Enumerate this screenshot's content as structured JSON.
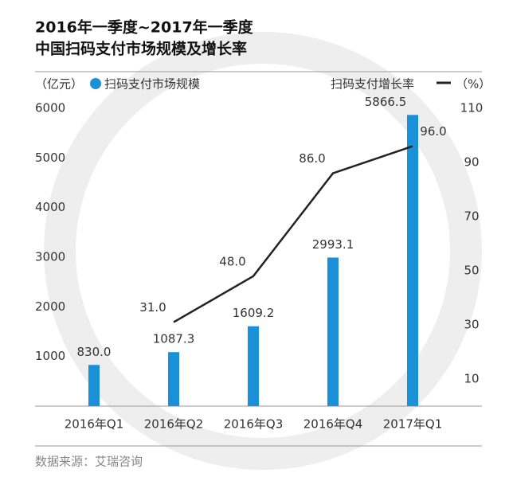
{
  "chart_data": {
    "type": "bar_line",
    "title": [
      "2016年一季度~2017年一季度",
      "中国扫码支付市场规模及增长率"
    ],
    "y_unit": "（亿元）",
    "y2_unit": "（%）",
    "categories": [
      "2016年Q1",
      "2016年Q2",
      "2016年Q3",
      "2016年Q4",
      "2017年Q1"
    ],
    "series": [
      {
        "name": "扫码支付市场规模",
        "type": "bar",
        "color": "#1a90d8",
        "values": [
          830,
          1087.3,
          1609.2,
          2993.1,
          5866.5
        ],
        "value_labels": [
          "830.0",
          "1087.3",
          "1609.2",
          "2993.1",
          "5866.5"
        ]
      },
      {
        "name": "扫码支付增长率",
        "type": "line",
        "axis": "y2",
        "color": "#222222",
        "values": [
          null,
          31,
          48,
          86,
          96
        ],
        "value_labels": [
          null,
          "31.0",
          "48.0",
          "86.0",
          "96.0"
        ]
      }
    ],
    "ylim": [
      0,
      6000
    ],
    "yticks": [
      1000,
      2000,
      3000,
      4000,
      5000,
      6000
    ],
    "y2lim": [
      0,
      110
    ],
    "y2ticks": [
      10,
      30,
      50,
      70,
      90,
      110
    ],
    "grid": false,
    "source": "数据来源：艾瑞咨询"
  }
}
